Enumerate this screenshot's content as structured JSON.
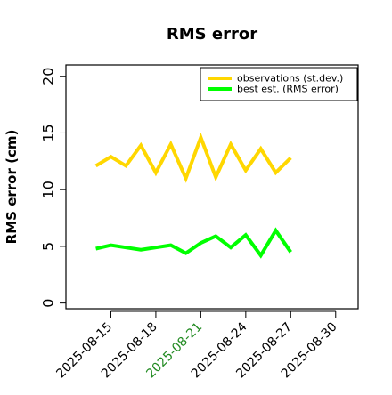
{
  "chart_data": {
    "type": "line",
    "title": "RMS error",
    "xlabel": "",
    "ylabel": "RMS error (cm)",
    "ylim": [
      -0.5,
      21
    ],
    "y_ticks": [
      0,
      5,
      10,
      15,
      20
    ],
    "x_ticks": [
      "2025-08-15",
      "2025-08-18",
      "2025-08-21",
      "2025-08-24",
      "2025-08-27",
      "2025-08-30"
    ],
    "x_tick_colors": [
      "#000000",
      "#000000",
      "#228B22",
      "#000000",
      "#000000",
      "#000000"
    ],
    "grid": false,
    "legend_position": "top-right",
    "series": [
      {
        "name": "observations (st.dev.)",
        "color": "#FFD700",
        "x": [
          "2025-08-14",
          "2025-08-15",
          "2025-08-16",
          "2025-08-17",
          "2025-08-18",
          "2025-08-19",
          "2025-08-20",
          "2025-08-21",
          "2025-08-22",
          "2025-08-23",
          "2025-08-24",
          "2025-08-25",
          "2025-08-26",
          "2025-08-27"
        ],
        "values": [
          12.1,
          12.9,
          12.1,
          13.9,
          11.5,
          14.0,
          11.0,
          14.6,
          11.1,
          14.0,
          11.7,
          13.6,
          11.5,
          12.8
        ]
      },
      {
        "name": "best est. (RMS error)",
        "color": "#00FF00",
        "x": [
          "2025-08-14",
          "2025-08-15",
          "2025-08-16",
          "2025-08-17",
          "2025-08-18",
          "2025-08-19",
          "2025-08-20",
          "2025-08-21",
          "2025-08-22",
          "2025-08-23",
          "2025-08-24",
          "2025-08-25",
          "2025-08-26",
          "2025-08-27"
        ],
        "values": [
          4.8,
          5.1,
          4.9,
          4.7,
          4.9,
          5.1,
          4.4,
          5.3,
          5.9,
          4.9,
          6.0,
          4.2,
          6.4,
          4.5
        ]
      }
    ]
  }
}
